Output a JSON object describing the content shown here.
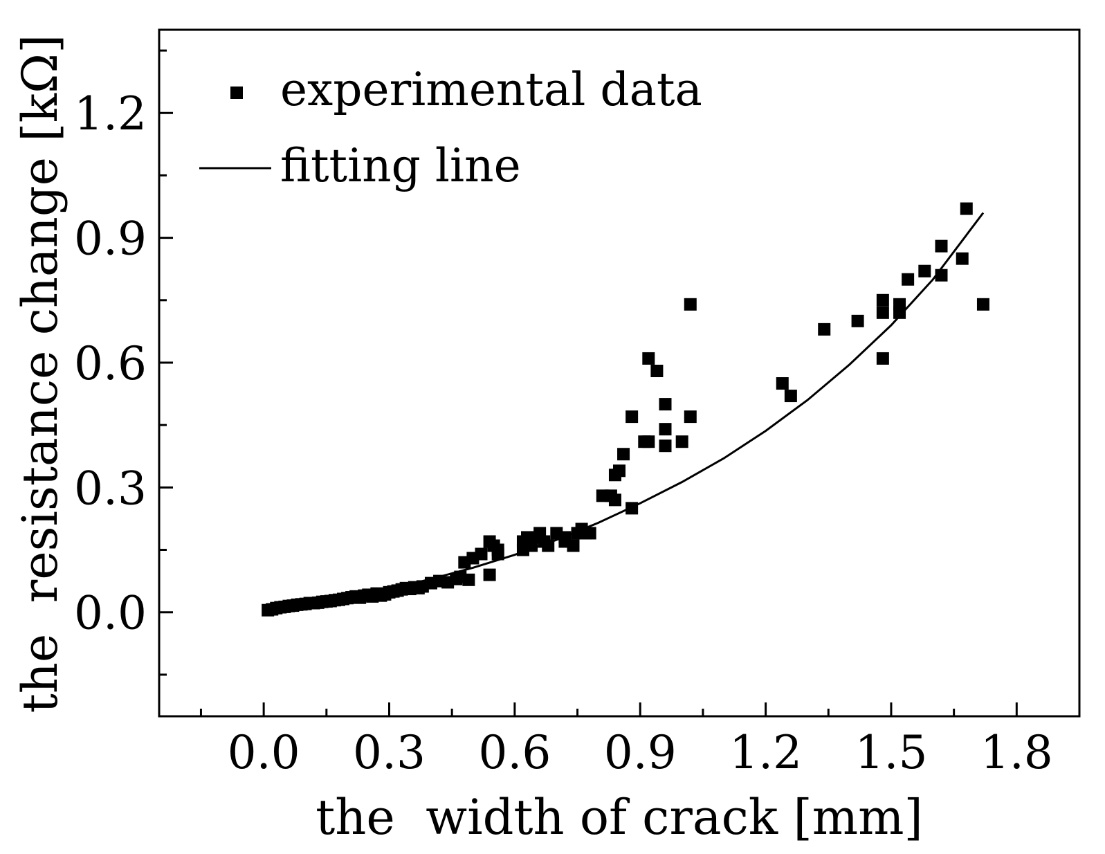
{
  "chart_data": {
    "type": "scatter",
    "title": "",
    "xlabel": "the  width of crack [mm]",
    "ylabel": "the  resistance change [kΩ]",
    "xlim": [
      -0.25,
      1.95
    ],
    "ylim": [
      -0.25,
      1.4
    ],
    "xticks": [
      0.0,
      0.3,
      0.6,
      0.9,
      1.2,
      1.5,
      1.8
    ],
    "xtick_labels": [
      "0.0",
      "0.3",
      "0.6",
      "0.9",
      "1.2",
      "1.5",
      "1.8"
    ],
    "yticks": [
      0.0,
      0.3,
      0.6,
      0.9,
      1.2
    ],
    "ytick_labels": [
      "0.0",
      "0.3",
      "0.6",
      "0.9",
      "1.2"
    ],
    "grid": false,
    "legend_position": "top-left",
    "series": [
      {
        "name": "experimental data",
        "style": "square markers",
        "color": "#000000",
        "points": [
          [
            0.01,
            0.005
          ],
          [
            0.02,
            0.007
          ],
          [
            0.03,
            0.01
          ],
          [
            0.04,
            0.012
          ],
          [
            0.05,
            0.013
          ],
          [
            0.06,
            0.015
          ],
          [
            0.07,
            0.016
          ],
          [
            0.08,
            0.018
          ],
          [
            0.09,
            0.019
          ],
          [
            0.1,
            0.02
          ],
          [
            0.11,
            0.022
          ],
          [
            0.12,
            0.022
          ],
          [
            0.13,
            0.023
          ],
          [
            0.14,
            0.025
          ],
          [
            0.15,
            0.026
          ],
          [
            0.16,
            0.027
          ],
          [
            0.17,
            0.029
          ],
          [
            0.18,
            0.03
          ],
          [
            0.19,
            0.032
          ],
          [
            0.2,
            0.034
          ],
          [
            0.21,
            0.036
          ],
          [
            0.22,
            0.038
          ],
          [
            0.23,
            0.035
          ],
          [
            0.24,
            0.04
          ],
          [
            0.25,
            0.042
          ],
          [
            0.26,
            0.038
          ],
          [
            0.27,
            0.045
          ],
          [
            0.28,
            0.04
          ],
          [
            0.29,
            0.043
          ],
          [
            0.3,
            0.048
          ],
          [
            0.31,
            0.05
          ],
          [
            0.32,
            0.052
          ],
          [
            0.33,
            0.055
          ],
          [
            0.34,
            0.058
          ],
          [
            0.35,
            0.056
          ],
          [
            0.36,
            0.06
          ],
          [
            0.37,
            0.058
          ],
          [
            0.38,
            0.062
          ],
          [
            0.4,
            0.07
          ],
          [
            0.42,
            0.075
          ],
          [
            0.44,
            0.072
          ],
          [
            0.46,
            0.08
          ],
          [
            0.47,
            0.085
          ],
          [
            0.48,
            0.12
          ],
          [
            0.49,
            0.078
          ],
          [
            0.5,
            0.13
          ],
          [
            0.52,
            0.14
          ],
          [
            0.54,
            0.09
          ],
          [
            0.54,
            0.17
          ],
          [
            0.55,
            0.16
          ],
          [
            0.56,
            0.15
          ],
          [
            0.56,
            0.14
          ],
          [
            0.62,
            0.17
          ],
          [
            0.62,
            0.15
          ],
          [
            0.63,
            0.18
          ],
          [
            0.64,
            0.16
          ],
          [
            0.65,
            0.18
          ],
          [
            0.66,
            0.19
          ],
          [
            0.67,
            0.17
          ],
          [
            0.68,
            0.16
          ],
          [
            0.7,
            0.19
          ],
          [
            0.72,
            0.18
          ],
          [
            0.72,
            0.17
          ],
          [
            0.74,
            0.16
          ],
          [
            0.75,
            0.19
          ],
          [
            0.76,
            0.2
          ],
          [
            0.77,
            0.19
          ],
          [
            0.78,
            0.19
          ],
          [
            0.81,
            0.28
          ],
          [
            0.83,
            0.28
          ],
          [
            0.84,
            0.27
          ],
          [
            0.84,
            0.33
          ],
          [
            0.85,
            0.34
          ],
          [
            0.86,
            0.38
          ],
          [
            0.88,
            0.25
          ],
          [
            0.88,
            0.47
          ],
          [
            0.91,
            0.41
          ],
          [
            0.92,
            0.41
          ],
          [
            0.92,
            0.61
          ],
          [
            0.94,
            0.58
          ],
          [
            0.96,
            0.5
          ],
          [
            0.96,
            0.44
          ],
          [
            0.96,
            0.4
          ],
          [
            1.0,
            0.41
          ],
          [
            1.02,
            0.47
          ],
          [
            1.02,
            0.74
          ],
          [
            1.24,
            0.55
          ],
          [
            1.26,
            0.52
          ],
          [
            1.34,
            0.68
          ],
          [
            1.42,
            0.7
          ],
          [
            1.48,
            0.61
          ],
          [
            1.48,
            0.72
          ],
          [
            1.48,
            0.75
          ],
          [
            1.52,
            0.72
          ],
          [
            1.52,
            0.74
          ],
          [
            1.54,
            0.8
          ],
          [
            1.58,
            0.82
          ],
          [
            1.62,
            0.81
          ],
          [
            1.62,
            0.88
          ],
          [
            1.67,
            0.85
          ],
          [
            1.68,
            0.97
          ],
          [
            1.72,
            0.74
          ]
        ]
      },
      {
        "name": "fitting line",
        "style": "solid line",
        "color": "#000000",
        "equation": "y = 0.12*(exp(1.27*x) - 1)",
        "x_range": [
          0.0,
          1.72
        ],
        "points": [
          [
            0.0,
            0.0
          ],
          [
            0.1,
            0.016
          ],
          [
            0.2,
            0.035
          ],
          [
            0.3,
            0.055
          ],
          [
            0.4,
            0.08
          ],
          [
            0.5,
            0.107
          ],
          [
            0.6,
            0.138
          ],
          [
            0.7,
            0.174
          ],
          [
            0.8,
            0.215
          ],
          [
            0.9,
            0.262
          ],
          [
            1.0,
            0.313
          ],
          [
            1.1,
            0.37
          ],
          [
            1.2,
            0.436
          ],
          [
            1.3,
            0.51
          ],
          [
            1.4,
            0.595
          ],
          [
            1.5,
            0.69
          ],
          [
            1.6,
            0.8
          ],
          [
            1.72,
            0.96
          ]
        ]
      }
    ]
  }
}
